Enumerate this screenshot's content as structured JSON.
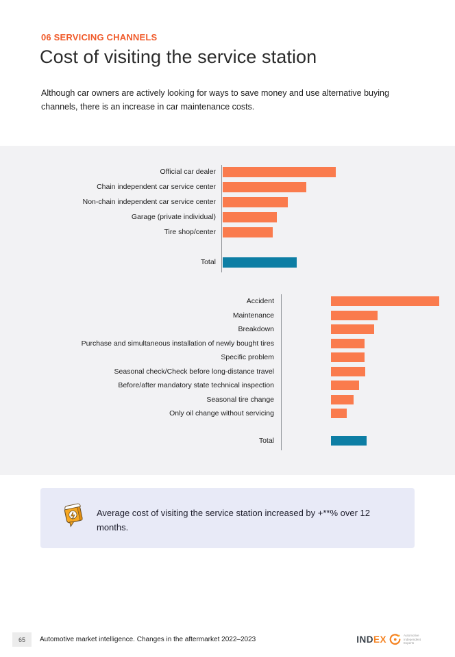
{
  "header": {
    "eyebrow": "06 SERVICING CHANNELS",
    "title": "Cost of visiting the service station",
    "intro": "Although car owners are actively looking for ways to save money and use alternative buying channels, there is an increase in car maintenance costs."
  },
  "colors": {
    "accent_orange": "#F05A2A",
    "bar_orange": "#FA7B4D",
    "bar_blue": "#0D7EA4",
    "panel_bg": "#F2F2F4",
    "callout_bg": "#E8EAF7"
  },
  "chart_data": [
    {
      "id": "cost_by_servicing_channel",
      "type": "bar",
      "orientation": "horizontal",
      "value_labels_shown": false,
      "note": "numeric values are not displayed in the source; values below are relative bar lengths in pixels",
      "categories": [
        "Official car dealer",
        "Chain independent car service center",
        "Non-chain independent car service center",
        "Garage (private individual)",
        "Tire shop/center"
      ],
      "values": [
        165,
        122,
        95,
        79,
        73
      ],
      "total": {
        "label": "Total",
        "value": 108
      },
      "bar_color": "#FA7B4D",
      "total_bar_color": "#0D7EA4",
      "axis_color": "#8E9196",
      "legend": "none",
      "grid": false
    },
    {
      "id": "cost_by_visit_reason",
      "type": "bar",
      "orientation": "horizontal",
      "value_labels_shown": false,
      "note": "numeric values are not displayed in the source; values below are relative bar lengths in pixels",
      "categories": [
        "Accident",
        "Maintenance",
        "Breakdown",
        "Purchase and simultaneous installation of newly bought tires",
        "Specific problem",
        "Seasonal check/Check before long-distance travel",
        "Before/after mandatory state technical inspection",
        "Seasonal tire change",
        "Only oil change without servicing"
      ],
      "values": [
        158,
        68,
        63,
        49,
        49,
        50,
        41,
        33,
        23
      ],
      "total": {
        "label": "Total",
        "value": 52
      },
      "bar_color": "#FA7B4D",
      "total_bar_color": "#0D7EA4",
      "axis_color": "#8E9196",
      "legend": "none",
      "grid": false
    }
  ],
  "callout": {
    "icon": "lightning-speech-bubble-icon",
    "text": "Average cost of visiting the service station increased by +**% over 12 months."
  },
  "footer": {
    "page_number": "65",
    "source_line": "Automotive market intelligence. Changes in the aftermarket 2022–2023",
    "logo": {
      "name_dark": "IND",
      "name_orange": "EX",
      "tagline": [
        "Automotive",
        "Independent",
        "Experts"
      ]
    }
  }
}
